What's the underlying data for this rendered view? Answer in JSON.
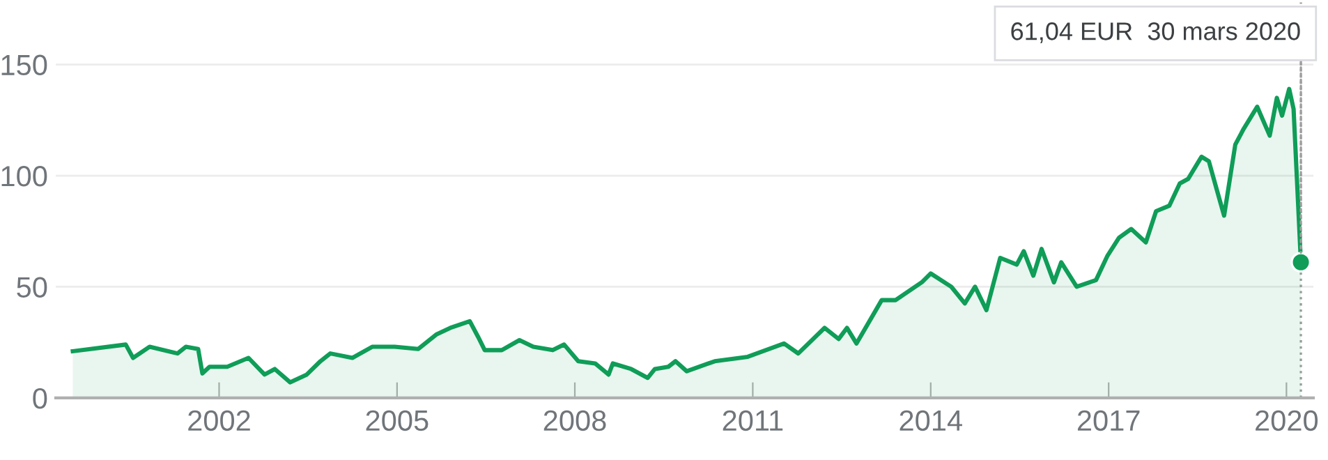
{
  "chart_data": {
    "type": "area",
    "color": "#0f9d58",
    "x": [
      "1999-07-15",
      "2000-06-05",
      "2000-07-20",
      "2000-10-30",
      "2001-04-20",
      "2001-06-10",
      "2001-08-25",
      "2001-09-20",
      "2001-11-03",
      "2002-02-20",
      "2002-07-01",
      "2002-10-08",
      "2002-12-10",
      "2003-03-15",
      "2003-06-25",
      "2003-09-17",
      "2003-11-17",
      "2004-04-01",
      "2004-08-01",
      "2004-12-17",
      "2005-05-12",
      "2005-08-30",
      "2005-11-25",
      "2006-03-25",
      "2006-05-15",
      "2006-06-25",
      "2006-10-08",
      "2007-01-25",
      "2007-04-20",
      "2007-08-18",
      "2007-10-27",
      "2008-01-22",
      "2008-05-05",
      "2008-07-27",
      "2008-08-22",
      "2008-12-13",
      "2009-03-25",
      "2009-05-08",
      "2009-07-30",
      "2009-09-12",
      "2009-11-20",
      "2010-05-12",
      "2010-12-01",
      "2011-07-12",
      "2011-10-08",
      "2012-03-18",
      "2012-06-13",
      "2012-08-03",
      "2012-10-01",
      "2013-03-05",
      "2013-05-30",
      "2013-11-07",
      "2014-01-01",
      "2014-05-08",
      "2014-07-30",
      "2014-10-01",
      "2014-12-10",
      "2015-03-05",
      "2015-06-15",
      "2015-07-28",
      "2015-09-25",
      "2015-11-15",
      "2016-01-30",
      "2016-03-15",
      "2016-06-18",
      "2016-10-15",
      "2016-12-25",
      "2017-03-05",
      "2017-05-20",
      "2017-08-18",
      "2017-10-20",
      "2018-01-10",
      "2018-03-15",
      "2018-05-05",
      "2018-07-27",
      "2018-09-10",
      "2018-10-22",
      "2018-12-13",
      "2019-02-20",
      "2019-04-12",
      "2019-07-05",
      "2019-09-20",
      "2019-11-03",
      "2019-12-05",
      "2020-01-18",
      "2020-02-14",
      "2020-03-30"
    ],
    "values": [
      21,
      24,
      18,
      23,
      20,
      23,
      22,
      11,
      14,
      14,
      18,
      10.5,
      13,
      7,
      10.5,
      16.5,
      20,
      18,
      23,
      23,
      22,
      28.5,
      31.5,
      34.5,
      27.5,
      21.5,
      21.5,
      26,
      23,
      21.5,
      24,
      16.5,
      15.5,
      10.5,
      15.5,
      13,
      9,
      13,
      14,
      16.5,
      12,
      16.5,
      18.5,
      24.5,
      20,
      31.5,
      26.5,
      31.5,
      24.5,
      44,
      44,
      52,
      56,
      50,
      42.5,
      50,
      39.5,
      63,
      60,
      66,
      55,
      67,
      52,
      61,
      50,
      53,
      64,
      72,
      76,
      70,
      84,
      86.5,
      96.5,
      98.5,
      108.5,
      106.5,
      95.5,
      82,
      114,
      121,
      131,
      118,
      135,
      127,
      139,
      130,
      61.04
    ],
    "xlim": [
      "1999-04-01",
      "2020-06-15"
    ],
    "ylim": [
      0,
      178
    ],
    "xticks": [
      "2002",
      "2005",
      "2008",
      "2011",
      "2014",
      "2017",
      "2020"
    ],
    "yticks": [
      0,
      50,
      100,
      150
    ],
    "grid": "y",
    "ref_lines": [
      {
        "axis": "x",
        "value": "2020-03-30",
        "line_style": "dotted",
        "color": "#9e9e9e"
      }
    ],
    "annotations": [
      {
        "text": "61,04 EUR  30 mars 2020",
        "x": "2020-03-30",
        "y": 61.04
      }
    ]
  }
}
